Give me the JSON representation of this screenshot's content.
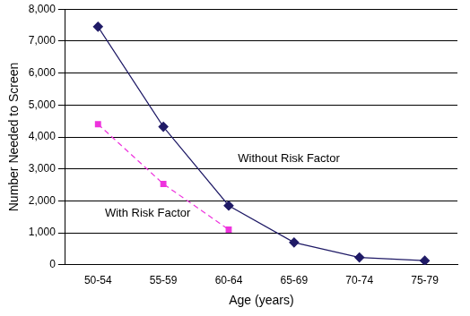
{
  "chart_data": {
    "type": "line",
    "x_label": "Age (years)",
    "y_label": "Number Needed to Screen",
    "categories": [
      "50-54",
      "55-59",
      "60-64",
      "65-69",
      "70-74",
      "75-79"
    ],
    "series": [
      {
        "name": "Without Risk Factor",
        "color": "#1f1a66",
        "marker": "diamond",
        "line_style": "solid",
        "values": [
          7450,
          4320,
          1850,
          700,
          230,
          130
        ]
      },
      {
        "name": "With Risk Factor",
        "color": "#ee33dd",
        "marker": "square",
        "line_style": "dashed",
        "values": [
          4400,
          2530,
          1100,
          null,
          null,
          null
        ]
      }
    ],
    "ylim": [
      0,
      8000
    ],
    "yticks": [
      0,
      {
        "value": 1000,
        "label": "1,000"
      },
      {
        "value": 2000,
        "label": "2,000"
      },
      {
        "value": 3000,
        "label": "3,000"
      },
      {
        "value": 4000,
        "label": "4,000"
      },
      {
        "value": 5000,
        "label": "5,000"
      },
      {
        "value": 6000,
        "label": "6,000"
      },
      {
        "value": 7000,
        "label": "7,000"
      },
      {
        "value": 8000,
        "label": "8,000"
      }
    ],
    "grid": true
  }
}
